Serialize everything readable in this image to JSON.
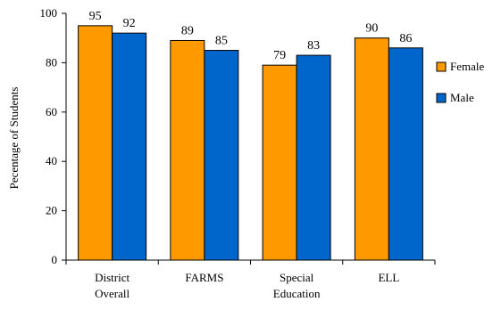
{
  "chart_data": {
    "type": "bar",
    "categories": [
      [
        "District",
        "Overall"
      ],
      [
        "FARMS"
      ],
      [
        "Special",
        "Education"
      ],
      [
        "ELL"
      ]
    ],
    "series": [
      {
        "name": "Female",
        "values": [
          95,
          89,
          79,
          90
        ],
        "color": "#FF9900"
      },
      {
        "name": "Male",
        "values": [
          92,
          85,
          83,
          86
        ],
        "color": "#0066CC"
      }
    ],
    "data_labels": [
      [
        "95",
        "92"
      ],
      [
        "89",
        "85"
      ],
      [
        "79",
        "83"
      ],
      [
        "90",
        "86"
      ]
    ],
    "ylabel": "Pecentage of Students",
    "xlabel": "",
    "title": "",
    "ylim": [
      0,
      100
    ],
    "yticks": [
      0,
      20,
      40,
      60,
      80,
      100
    ],
    "grid": false,
    "legend": "right"
  }
}
